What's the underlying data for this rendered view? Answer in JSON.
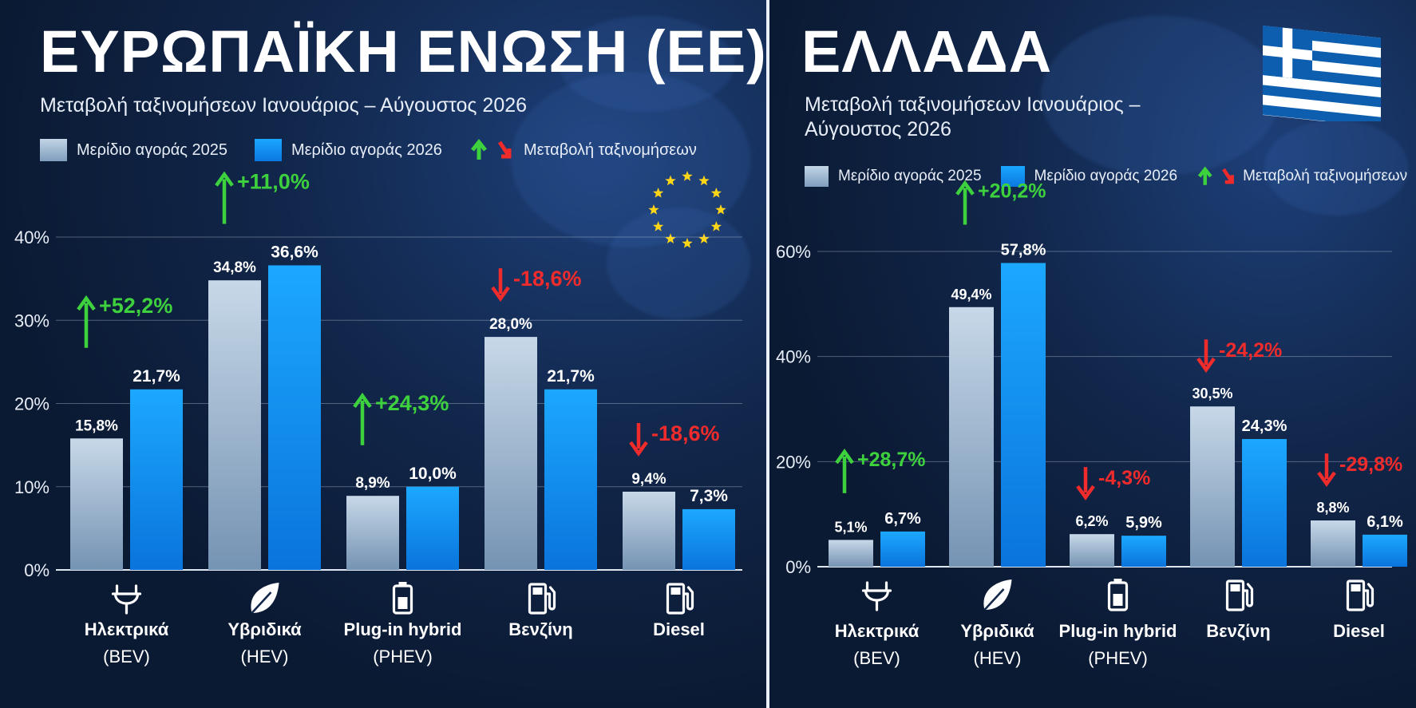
{
  "panels": [
    {
      "title": "ΕΥΡΩΠΑΪΚΗ ΕΝΩΣΗ (ΕΕ)",
      "subtitle": "Μεταβολή ταξινομήσεων Ιανουάριος – Αύγουστος 2026",
      "legend": {
        "s2025": "Μερίδιο αγοράς 2025",
        "s2026": "Μερίδιο αγοράς 2026",
        "change": "Μεταβολή ταξινομήσεων"
      }
    },
    {
      "title": "ΕΛΛΑΔΑ",
      "subtitle_lines": [
        "Μεταβολή ταξινομήσεων Ιανουάριος –",
        "Αύγουστος 2026"
      ],
      "legend": {
        "s2025": "Μερίδιο αγοράς 2025",
        "s2026": "Μερίδιο αγοράς 2026",
        "change": "Μεταβολή ταξινομήσεων"
      }
    }
  ],
  "colors": {
    "bar2025": "#9fb8d2",
    "bar2026": "#0f8ff2",
    "positive": "#3ed13e",
    "negative": "#ef2b2b"
  },
  "icons": [
    "plug-icon",
    "leaf-icon",
    "battery-icon",
    "fuel-pump-icon",
    "fuel-pump-icon"
  ],
  "chart_data": [
    {
      "type": "bar",
      "categories": [
        [
          "Ηλεκτρικά",
          "(BEV)"
        ],
        [
          "Υβριδικά",
          "(HEV)"
        ],
        [
          "Plug-in hybrid",
          "(PHEV)"
        ],
        [
          "Βενζίνη"
        ],
        [
          "Diesel"
        ]
      ],
      "series": [
        {
          "name": "Μερίδιο αγοράς 2025",
          "values": [
            15.8,
            34.8,
            8.9,
            28.0,
            9.4
          ],
          "labels": [
            "15,8%",
            "34,8%",
            "8,9%",
            "28,0%",
            "9,4%"
          ]
        },
        {
          "name": "Μερίδιο αγοράς 2026",
          "values": [
            21.7,
            36.6,
            10.0,
            21.7,
            7.3
          ],
          "labels": [
            "21,7%",
            "36,6%",
            "10,0%",
            "21,7%",
            "7,3%"
          ]
        }
      ],
      "changes": [
        52.2,
        11.0,
        24.3,
        -18.6,
        -18.6
      ],
      "change_labels": [
        "+52,2%",
        "+11,0%",
        "+24,3%",
        "-18,6%",
        "-18,6%"
      ],
      "yticks": [
        "0%",
        "10%",
        "20%",
        "30%",
        "40%"
      ],
      "ylim": [
        0,
        40
      ]
    },
    {
      "type": "bar",
      "categories": [
        [
          "Ηλεκτρικά",
          "(BEV)"
        ],
        [
          "Υβριδικά",
          "(HEV)"
        ],
        [
          "Plug-in hybrid",
          "(PHEV)"
        ],
        [
          "Βενζίνη"
        ],
        [
          "Diesel"
        ]
      ],
      "series": [
        {
          "name": "Μερίδιο αγοράς 2025",
          "values": [
            5.1,
            49.4,
            6.2,
            30.5,
            8.8
          ],
          "labels": [
            "5,1%",
            "49,4%",
            "6,2%",
            "30,5%",
            "8,8%"
          ]
        },
        {
          "name": "Μερίδιο αγοράς 2026",
          "values": [
            6.7,
            57.8,
            5.9,
            24.3,
            6.1
          ],
          "labels": [
            "6,7%",
            "57,8%",
            "5,9%",
            "24,3%",
            "6,1%"
          ]
        }
      ],
      "changes": [
        28.7,
        20.2,
        -4.3,
        -24.2,
        -29.8
      ],
      "change_labels": [
        "+28,7%",
        "+20,2%",
        "-4,3%",
        "-24,2%",
        "-29,8%"
      ],
      "yticks": [
        "0%",
        "20%",
        "40%",
        "60%"
      ],
      "ylim": [
        0,
        60
      ]
    }
  ]
}
